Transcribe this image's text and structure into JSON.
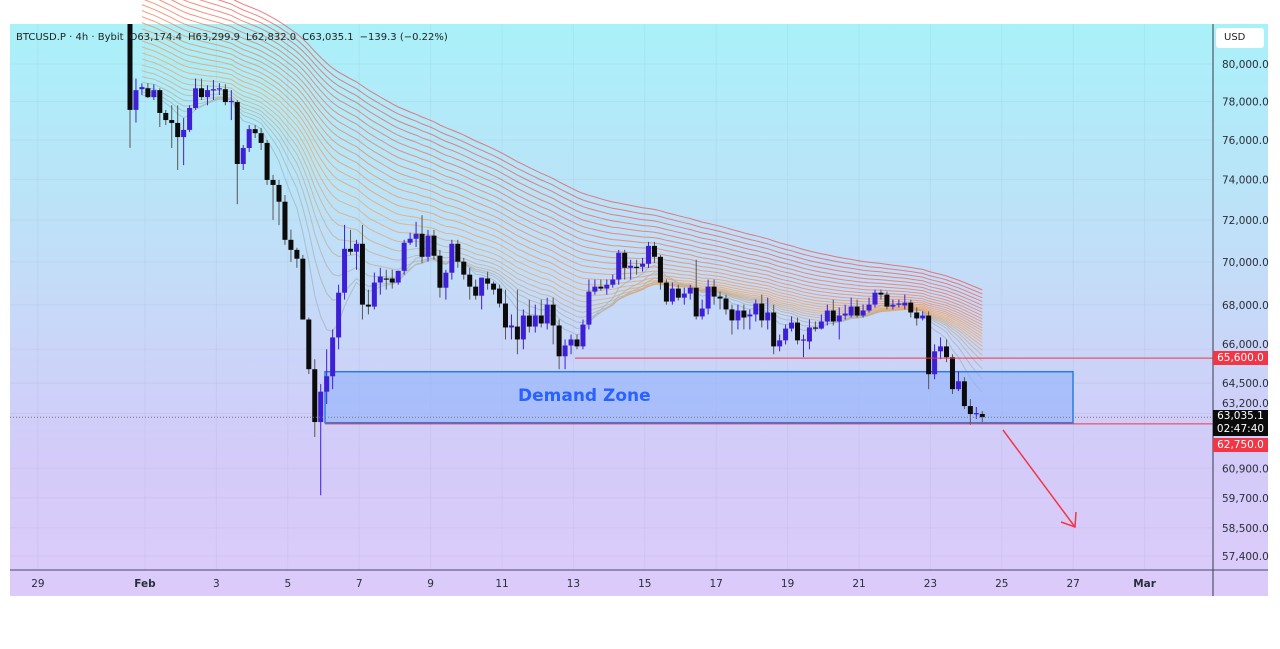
{
  "legend": {
    "symbol": "BTCUSD.P · 4h · Bybit",
    "open": "O63,174.4",
    "high": "H63,299.9",
    "low": "L62,832.0",
    "close": "C63,035.1",
    "change": "−139.3 (−0.22%)"
  },
  "currency_button": "USD",
  "price_tags": {
    "resistance": "65,600.0",
    "last_price": "63,035.1",
    "countdown": "02:47:40",
    "support": "62,750.0"
  },
  "annotations": {
    "zone_label": "Demand Zone"
  },
  "colors": {
    "bull": "#3d1fd6",
    "bear": "#0b0b0b",
    "zone_fill": "#8fb2fb",
    "zone_border": "#2a7de1",
    "level_line": "#f23645",
    "arrow": "#f23645",
    "ribbon_fast": "#9fb3bc",
    "ribbon_mid": "#f5a55a",
    "ribbon_slow": "#ef5350"
  },
  "chart_data": {
    "type": "candlestick",
    "interval": "4h",
    "scale": "log",
    "ylim": [
      56800,
      82000
    ],
    "y_ticks": [
      "80,000.0",
      "78,000.0",
      "76,000.0",
      "74,000.0",
      "72,000.0",
      "70,000.0",
      "68,000.0",
      "66,000.0",
      "64,500.0",
      "63,200.0",
      "60,900.0",
      "59,700.0",
      "58,500.0",
      "57,400.0"
    ],
    "y_tick_values": [
      80000,
      78000,
      76000,
      74000,
      72000,
      70000,
      68000,
      66000,
      64500,
      63200,
      60900,
      59700,
      58500,
      57400
    ],
    "x_ticks": [
      "29",
      "Feb",
      "3",
      "5",
      "7",
      "9",
      "11",
      "13",
      "15",
      "17",
      "19",
      "21",
      "23",
      "25",
      "27",
      "Mar"
    ],
    "levels": {
      "resistance": 65600,
      "support": 62750,
      "last": 63035.1
    },
    "demand_zone": {
      "top": 65000,
      "bottom": 62800
    },
    "ohlc": [
      [
        82700,
        83000,
        75600,
        77560
      ],
      [
        77560,
        79220,
        76900,
        78600
      ],
      [
        78650,
        78960,
        78340,
        78760
      ],
      [
        78700,
        78970,
        78180,
        78230
      ],
      [
        78230,
        78910,
        78080,
        78600
      ],
      [
        78600,
        78700,
        76670,
        77400
      ],
      [
        77400,
        77560,
        76770,
        77030
      ],
      [
        77030,
        77800,
        75590,
        76880
      ],
      [
        76880,
        77800,
        74480,
        76150
      ],
      [
        76150,
        77130,
        74720,
        76520
      ],
      [
        76520,
        77800,
        76410,
        77660
      ],
      [
        77660,
        79220,
        77560,
        78700
      ],
      [
        78700,
        79220,
        78080,
        78230
      ],
      [
        78230,
        78860,
        77800,
        78600
      ],
      [
        78600,
        79140,
        78080,
        78650
      ],
      [
        78650,
        78970,
        78340,
        78700
      ],
      [
        78650,
        78910,
        77800,
        77970
      ],
      [
        77970,
        78600,
        77030,
        78030
      ],
      [
        77970,
        78080,
        72780,
        74780
      ],
      [
        74780,
        75740,
        74480,
        75590
      ],
      [
        75590,
        76770,
        75390,
        76560
      ],
      [
        76560,
        76770,
        76100,
        76350
      ],
      [
        76350,
        76620,
        75490,
        75850
      ],
      [
        75850,
        76000,
        73730,
        73980
      ],
      [
        73980,
        74230,
        72010,
        73730
      ],
      [
        73730,
        73980,
        71760,
        72900
      ],
      [
        72900,
        73230,
        70810,
        71050
      ],
      [
        71050,
        71540,
        70000,
        70570
      ],
      [
        70570,
        70670,
        69720,
        70150
      ],
      [
        70150,
        70330,
        67330,
        67330
      ],
      [
        67330,
        67420,
        64900,
        65110
      ],
      [
        65110,
        65550,
        62200,
        62830
      ],
      [
        62830,
        64460,
        59800,
        64130
      ],
      [
        64130,
        65990,
        63600,
        64800
      ],
      [
        64800,
        66880,
        64240,
        66520
      ],
      [
        66520,
        68930,
        65990,
        68560
      ],
      [
        68560,
        71770,
        68240,
        70620
      ],
      [
        70620,
        71530,
        70330,
        70480
      ],
      [
        70480,
        71050,
        69630,
        70860
      ],
      [
        70860,
        71770,
        67330,
        68010
      ],
      [
        68010,
        68700,
        67560,
        67920
      ],
      [
        67920,
        69500,
        67790,
        69030
      ],
      [
        69030,
        69720,
        68470,
        69310
      ],
      [
        69220,
        69630,
        68700,
        69170
      ],
      [
        69220,
        69630,
        68750,
        69030
      ],
      [
        69030,
        69580,
        68930,
        69580
      ],
      [
        69580,
        71050,
        69400,
        70910
      ],
      [
        70910,
        71390,
        70810,
        71100
      ],
      [
        71100,
        71920,
        70710,
        71340
      ],
      [
        71340,
        72240,
        69950,
        70240
      ],
      [
        70240,
        71530,
        70010,
        71250
      ],
      [
        71250,
        71530,
        70100,
        70290
      ],
      [
        70290,
        70570,
        68330,
        68790
      ],
      [
        68790,
        69630,
        68240,
        69490
      ],
      [
        69490,
        71050,
        69170,
        70860
      ],
      [
        70860,
        71050,
        69720,
        70010
      ],
      [
        70010,
        70190,
        69170,
        69400
      ],
      [
        69400,
        69720,
        68240,
        68840
      ],
      [
        68840,
        69170,
        68240,
        68420
      ],
      [
        68420,
        69260,
        67790,
        69260
      ],
      [
        69220,
        69540,
        68700,
        68980
      ],
      [
        68980,
        69080,
        68470,
        68700
      ],
      [
        68750,
        68930,
        67880,
        68060
      ],
      [
        68060,
        68700,
        66430,
        66970
      ],
      [
        66970,
        67560,
        66430,
        67060
      ],
      [
        67010,
        68700,
        65770,
        66430
      ],
      [
        66430,
        67790,
        65990,
        67510
      ],
      [
        67510,
        68240,
        66740,
        67010
      ],
      [
        67010,
        68010,
        66740,
        67510
      ],
      [
        67510,
        68240,
        66970,
        67150
      ],
      [
        67150,
        68330,
        66880,
        68010
      ],
      [
        68010,
        68330,
        66210,
        67060
      ],
      [
        67060,
        67330,
        65110,
        65680
      ],
      [
        65680,
        66430,
        65110,
        66160
      ],
      [
        66160,
        66650,
        65770,
        66430
      ],
      [
        66430,
        66650,
        65990,
        66120
      ],
      [
        66120,
        67330,
        65990,
        67100
      ],
      [
        67100,
        69170,
        66880,
        68610
      ],
      [
        68610,
        69170,
        68470,
        68840
      ],
      [
        68840,
        69170,
        68650,
        68750
      ],
      [
        68750,
        69170,
        68470,
        68930
      ],
      [
        68930,
        69400,
        68790,
        69170
      ],
      [
        69170,
        70570,
        68930,
        70430
      ],
      [
        70430,
        70570,
        69170,
        69720
      ],
      [
        69720,
        70100,
        69170,
        69820
      ],
      [
        69770,
        70100,
        69400,
        69720
      ],
      [
        69770,
        70190,
        69540,
        69910
      ],
      [
        69910,
        70950,
        69720,
        70760
      ],
      [
        70760,
        70950,
        69950,
        70240
      ],
      [
        70240,
        70330,
        68700,
        69030
      ],
      [
        69030,
        69170,
        68010,
        68150
      ],
      [
        68150,
        69030,
        68010,
        68750
      ],
      [
        68750,
        68930,
        68200,
        68330
      ],
      [
        68330,
        68790,
        68010,
        68520
      ],
      [
        68520,
        68930,
        68240,
        68790
      ],
      [
        68790,
        70100,
        67330,
        67470
      ],
      [
        67470,
        68240,
        67330,
        67830
      ],
      [
        67830,
        69170,
        67560,
        68840
      ],
      [
        68840,
        69170,
        68010,
        68380
      ],
      [
        68380,
        68610,
        67790,
        68290
      ],
      [
        68290,
        68470,
        67560,
        67790
      ],
      [
        67790,
        68010,
        66650,
        67290
      ],
      [
        67290,
        68010,
        66880,
        67740
      ],
      [
        67740,
        68010,
        66880,
        67420
      ],
      [
        67470,
        67790,
        66880,
        67560
      ],
      [
        67560,
        68240,
        67240,
        68060
      ],
      [
        68060,
        68470,
        66970,
        67290
      ],
      [
        67290,
        68330,
        66880,
        67650
      ],
      [
        67650,
        68010,
        65770,
        66120
      ],
      [
        66120,
        66650,
        65900,
        66390
      ],
      [
        66390,
        67100,
        66210,
        66920
      ],
      [
        66920,
        67470,
        66790,
        67190
      ],
      [
        67190,
        67420,
        66210,
        66390
      ],
      [
        66390,
        66650,
        65640,
        66430
      ],
      [
        66340,
        67330,
        65990,
        66970
      ],
      [
        66970,
        67240,
        66790,
        66920
      ],
      [
        66920,
        67560,
        66880,
        67240
      ],
      [
        67240,
        68010,
        67060,
        67740
      ],
      [
        67740,
        68240,
        67060,
        67240
      ],
      [
        67240,
        67880,
        66430,
        67510
      ],
      [
        67510,
        68010,
        67330,
        67600
      ],
      [
        67510,
        68330,
        67420,
        67920
      ],
      [
        67920,
        68240,
        67420,
        67510
      ],
      [
        67510,
        68010,
        67420,
        67740
      ],
      [
        67740,
        68330,
        67650,
        68010
      ],
      [
        68010,
        68700,
        67880,
        68560
      ],
      [
        68560,
        68700,
        68240,
        68470
      ],
      [
        68470,
        68610,
        67790,
        67920
      ],
      [
        67920,
        68240,
        67790,
        68010
      ],
      [
        68010,
        68240,
        67880,
        68060
      ],
      [
        67970,
        68470,
        67790,
        68100
      ],
      [
        68100,
        68240,
        67420,
        67650
      ],
      [
        67650,
        67880,
        67060,
        67380
      ],
      [
        67380,
        67700,
        67290,
        67510
      ],
      [
        67510,
        67700,
        64240,
        64890
      ],
      [
        64890,
        66210,
        64670,
        65900
      ],
      [
        65900,
        66520,
        65550,
        66120
      ],
      [
        66120,
        66430,
        65420,
        65640
      ],
      [
        65640,
        65770,
        64030,
        64240
      ],
      [
        64240,
        65020,
        64160,
        64580
      ],
      [
        64580,
        64760,
        63380,
        63510
      ],
      [
        63510,
        63810,
        62710,
        63170
      ],
      [
        63170,
        63470,
        62960,
        63210
      ],
      [
        63174.4,
        63299.9,
        62832.0,
        63035.1
      ]
    ]
  }
}
